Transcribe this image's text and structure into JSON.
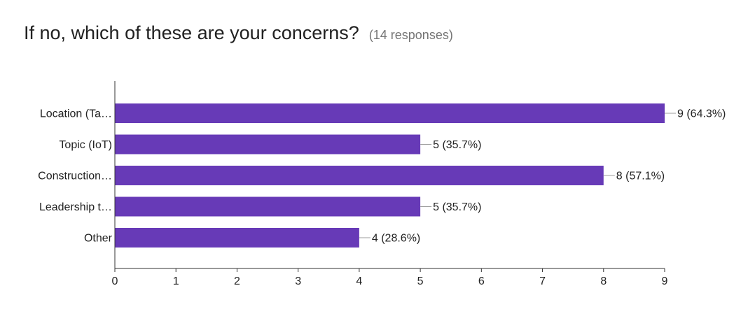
{
  "header": {
    "title": "If no, which of these are your concerns?",
    "subtitle": "(14 responses)"
  },
  "chart_data": {
    "type": "bar",
    "orientation": "horizontal",
    "categories": [
      "Location (Ta…",
      "Topic (IoT)",
      "Construction…",
      "Leadership t…",
      "Other"
    ],
    "values": [
      9,
      5,
      8,
      5,
      4
    ],
    "data_labels": [
      "9 (64.3%)",
      "5 (35.7%)",
      "8 (57.1%)",
      "5 (35.7%)",
      "4 (28.6%)"
    ],
    "xlim": [
      0,
      9
    ],
    "xticks": [
      "0",
      "1",
      "2",
      "3",
      "4",
      "5",
      "6",
      "7",
      "8",
      "9"
    ],
    "title": "If no, which of these are your concerns?",
    "subtitle": "(14 responses)",
    "xlabel": "",
    "ylabel": "",
    "grid": false,
    "legend": "none",
    "colors": {
      "bar": "#673ab7",
      "axis": "#333333",
      "leader": "#9e9e9e"
    }
  }
}
